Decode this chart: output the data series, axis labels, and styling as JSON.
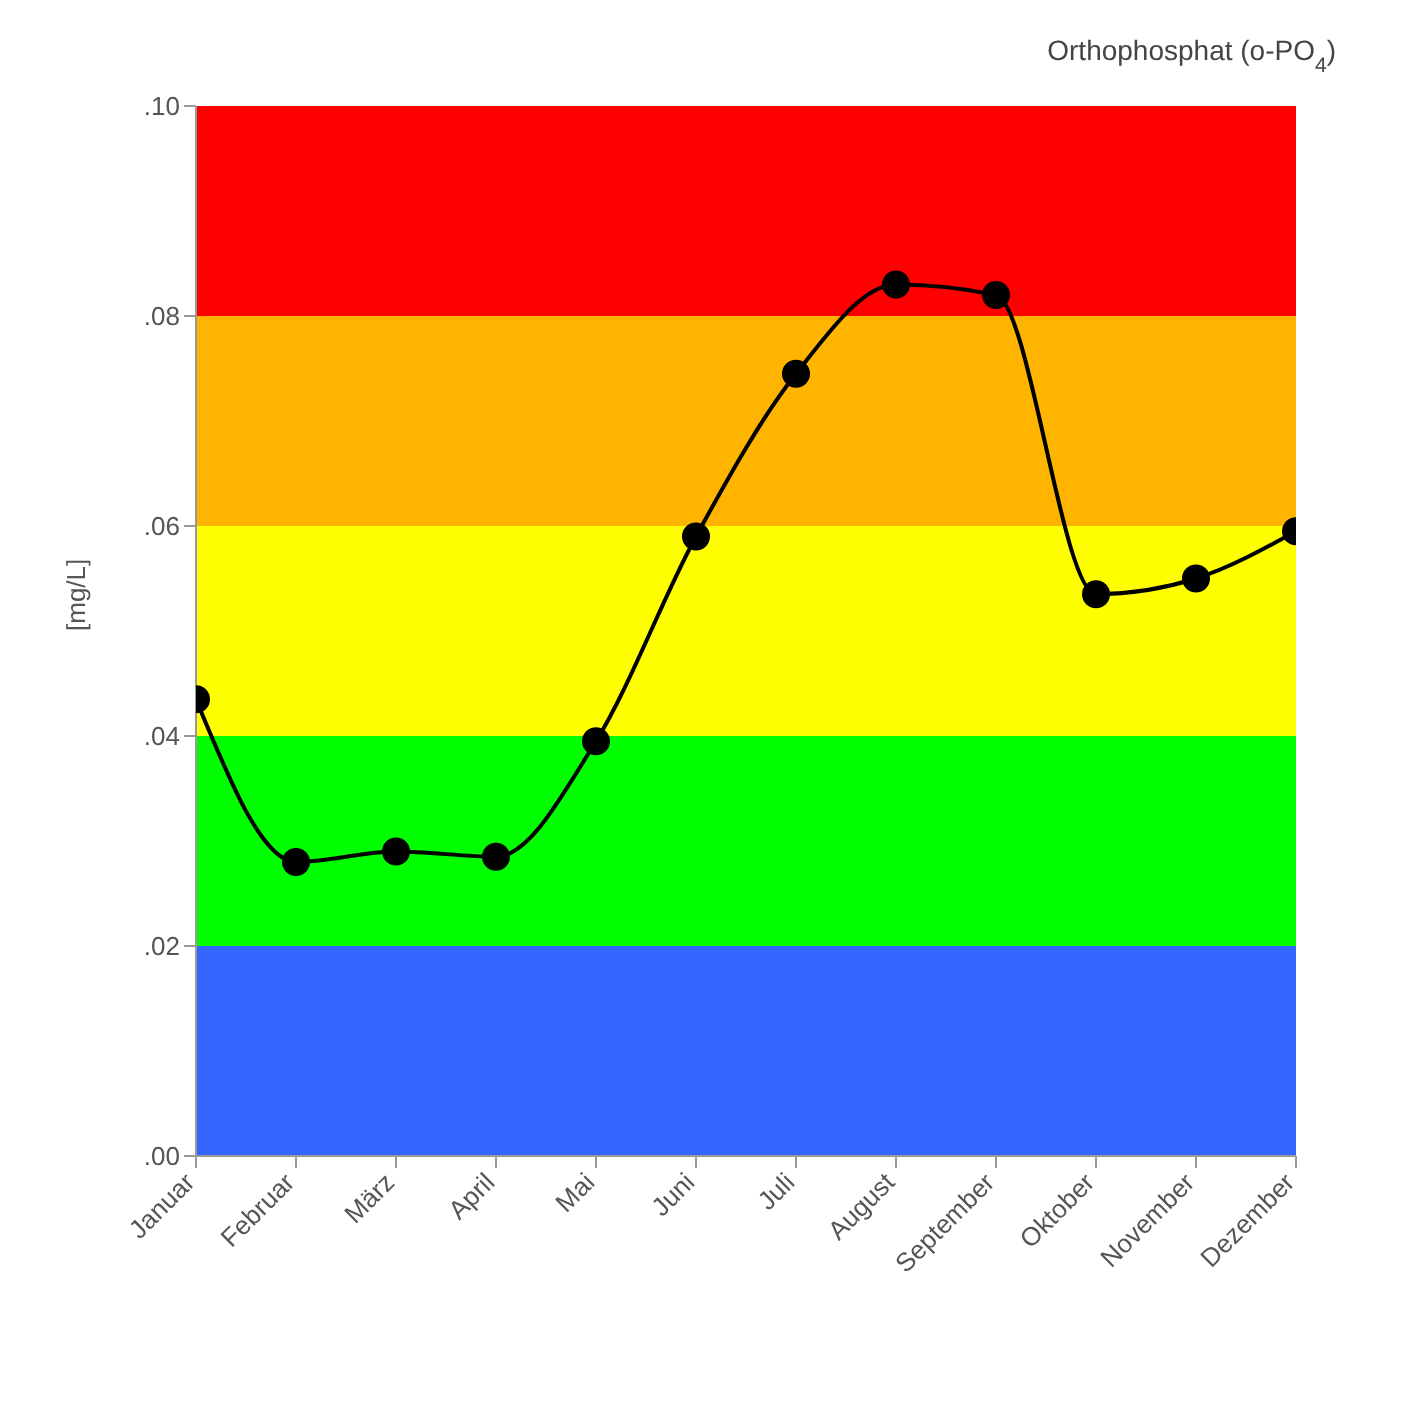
{
  "chart_data": {
    "type": "line",
    "title": "Orthophosphat (o-PO$_{4}$)",
    "ylabel": "[mg/L]",
    "categories": [
      "Januar",
      "Februar",
      "März",
      "April",
      "Mai",
      "Juni",
      "Juli",
      "August",
      "September",
      "Oktober",
      "November",
      "Dezember"
    ],
    "series": [
      {
        "color": "#000000",
        "values": [
          0.0435,
          0.028,
          0.029,
          0.0285,
          0.0395,
          0.059,
          0.0745,
          0.083,
          0.082,
          0.0535,
          0.055,
          0.0595
        ]
      }
    ],
    "ylim": [
      0,
      0.1
    ],
    "yticks": [
      {
        "value": 0,
        "label": ".00"
      },
      {
        "value": 0.02,
        "label": ".02"
      },
      {
        "value": 0.04,
        "label": ".04"
      },
      {
        "value": 0.06,
        "label": ".06"
      },
      {
        "value": 0.08,
        "label": ".08"
      },
      {
        "value": 0.1,
        "label": ".10"
      }
    ],
    "bands": [
      {
        "axis": "y",
        "from": 0,
        "to": 0.02,
        "color": "#3366ff"
      },
      {
        "axis": "y",
        "from": 0.02,
        "to": 0.04,
        "color": "#00ff00"
      },
      {
        "axis": "y",
        "from": 0.04,
        "to": 0.06,
        "color": "#ffff00"
      },
      {
        "axis": "y",
        "from": 0.06,
        "to": 0.08,
        "color": "#ffb400"
      },
      {
        "axis": "y",
        "from": 0.08,
        "to": 0.1,
        "color": "#ff0000"
      }
    ],
    "marker": "circle"
  }
}
